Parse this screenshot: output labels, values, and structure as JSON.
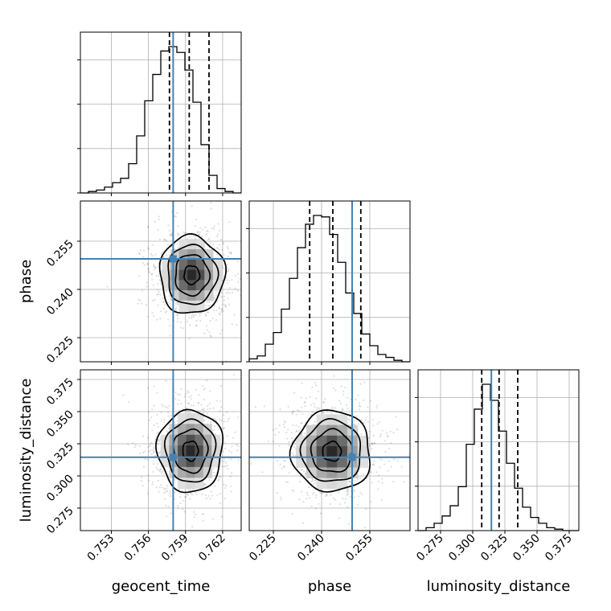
{
  "chart_data": {
    "type": "corner",
    "title": "",
    "parameters": [
      {
        "name": "geocent_time",
        "range": [
          0.7505,
          0.7635
        ],
        "ticks": [
          0.753,
          0.756,
          0.759,
          0.762
        ],
        "tick_labels": [
          "0.753",
          "0.756",
          "0.759",
          "0.762"
        ],
        "truth": 0.758,
        "quantiles": [
          0.7577,
          0.7593,
          0.7609
        ]
      },
      {
        "name": "phase",
        "range": [
          0.2175,
          0.2675
        ],
        "ticks": [
          0.225,
          0.24,
          0.255
        ],
        "tick_labels": [
          "0.225",
          "0.240",
          "0.255"
        ],
        "truth": 0.2495,
        "quantiles": [
          0.2363,
          0.2435,
          0.2522
        ]
      },
      {
        "name": "luminosity_distance",
        "range": [
          0.2575,
          0.3825
        ],
        "ticks": [
          0.275,
          0.3,
          0.325,
          0.35,
          0.375
        ],
        "tick_labels": [
          "0.275",
          "0.300",
          "0.325",
          "0.350",
          "0.375"
        ],
        "truth": 0.3145,
        "quantiles": [
          0.307,
          0.3205,
          0.335
        ]
      }
    ],
    "histograms": [
      {
        "parameter": "geocent_time",
        "bin_edges_range": [
          0.7505,
          0.7635
        ],
        "bins": 20,
        "counts": [
          0,
          1,
          2,
          4,
          7,
          10,
          20,
          39,
          63,
          81,
          97,
          100,
          96,
          84,
          62,
          33,
          12,
          3,
          1,
          0
        ]
      },
      {
        "parameter": "phase",
        "bin_edges_range": [
          0.2175,
          0.2675
        ],
        "bins": 20,
        "counts": [
          2,
          4,
          12,
          20,
          36,
          57,
          78,
          94,
          100,
          99,
          87,
          68,
          47,
          33,
          19,
          11,
          5,
          3,
          1,
          0
        ]
      },
      {
        "parameter": "luminosity_distance",
        "bin_edges_range": [
          0.2575,
          0.3825
        ],
        "bins": 20,
        "counts": [
          0,
          2,
          5,
          10,
          17,
          30,
          59,
          83,
          100,
          89,
          68,
          46,
          29,
          16,
          9,
          5,
          2,
          1,
          0,
          0
        ]
      }
    ],
    "pairs": [
      {
        "x": "geocent_time",
        "y": "phase",
        "mean": [
          0.7595,
          0.2445
        ],
        "sd": [
          0.00125,
          0.0058
        ]
      },
      {
        "x": "geocent_time",
        "y": "luminosity_distance",
        "mean": [
          0.7594,
          0.3195
        ],
        "sd": [
          0.00125,
          0.0152
        ]
      },
      {
        "x": "phase",
        "y": "luminosity_distance",
        "mean": [
          0.2432,
          0.319
        ],
        "sd": [
          0.0058,
          0.015
        ]
      }
    ],
    "grid": true,
    "colors": {
      "truth": "#4682b4",
      "hist": "#000000",
      "contour": "#000000",
      "grid": "#b0b0b0",
      "points": "#000000"
    }
  }
}
